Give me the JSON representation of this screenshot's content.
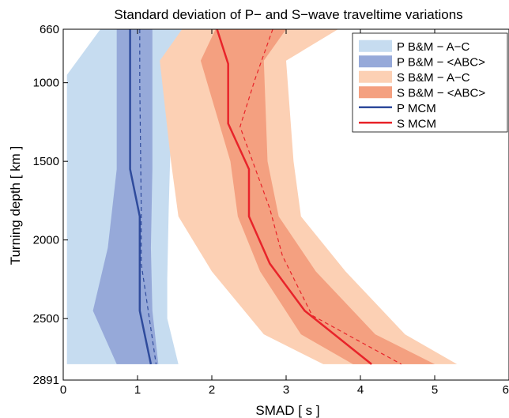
{
  "chart_data": {
    "type": "area",
    "title": "Standard deviation of P− and S−wave traveltime variations",
    "xlabel": "SMAD [ s ]",
    "ylabel": "Turning depth [ km ]",
    "xlim": [
      0,
      6
    ],
    "ylim": [
      660,
      2891
    ],
    "y_reversed": true,
    "x_ticks": [
      "0",
      "1",
      "2",
      "3",
      "4",
      "5",
      "6"
    ],
    "y_ticks": [
      {
        "value": 660,
        "label": "660"
      },
      {
        "value": 1000,
        "label": "1000"
      },
      {
        "value": 1500,
        "label": "1500"
      },
      {
        "value": 2000,
        "label": "2000"
      },
      {
        "value": 2500,
        "label": "2500"
      },
      {
        "value": 2891,
        "label": "2891"
      }
    ],
    "grid": false,
    "legend_position": "top-right",
    "bands": [
      {
        "name": "P B&M − A−C",
        "color": "#c6dcf0",
        "depth": [
          660,
          950,
          1300,
          1800,
          2250,
          2500,
          2790
        ],
        "lower": [
          0.5,
          0.05,
          0.05,
          0.05,
          0.05,
          0.05,
          0.05
        ],
        "upper": [
          1.65,
          1.5,
          1.45,
          1.42,
          1.4,
          1.4,
          1.55
        ]
      },
      {
        "name": "P B&M − <ABC>",
        "color": "#96a9d9",
        "depth": [
          660,
          1200,
          1550,
          2050,
          2450,
          2790
        ],
        "lower": [
          0.72,
          0.72,
          0.72,
          0.6,
          0.4,
          0.72
        ],
        "upper": [
          1.2,
          1.2,
          1.2,
          1.18,
          1.2,
          1.28
        ]
      },
      {
        "name": "S B&M − A−C",
        "color": "#fcd0b4",
        "depth": [
          660,
          860,
          1500,
          1850,
          2200,
          2600,
          2790
        ],
        "lower": [
          1.6,
          1.3,
          1.45,
          1.55,
          2.0,
          2.7,
          3.5
        ],
        "upper": [
          3.7,
          3.0,
          3.1,
          3.2,
          3.8,
          4.6,
          5.3
        ]
      },
      {
        "name": "S B&M − <ABC>",
        "color": "#f4a080",
        "depth": [
          660,
          860,
          1500,
          1850,
          2200,
          2600,
          2790
        ],
        "lower": [
          2.05,
          1.85,
          2.25,
          2.35,
          2.65,
          3.2,
          3.9
        ],
        "upper": [
          3.0,
          2.7,
          2.75,
          2.9,
          3.4,
          4.2,
          5.0
        ]
      }
    ],
    "series": [
      {
        "name": "P MCM",
        "color": "#2f4b9c",
        "style": "solid",
        "depth": [
          660,
          1550,
          1850,
          2450,
          2790
        ],
        "x": [
          0.9,
          0.9,
          1.03,
          1.03,
          1.18
        ]
      },
      {
        "name": "S MCM",
        "color": "#e8242a",
        "style": "solid",
        "depth": [
          660,
          880,
          1260,
          1550,
          1850,
          2150,
          2450,
          2790
        ],
        "x": [
          2.07,
          2.22,
          2.22,
          2.5,
          2.5,
          2.78,
          3.25,
          4.15
        ]
      }
    ],
    "dashed_lines": [
      {
        "color": "#2f4b9c",
        "style": "dashed",
        "depth": [
          660,
          1000,
          1800,
          2150,
          2790
        ],
        "x": [
          1.03,
          1.03,
          1.05,
          1.05,
          1.25
        ]
      },
      {
        "color": "#e8242a",
        "style": "dashed",
        "depth": [
          660,
          980,
          1280,
          1800,
          2100,
          2480,
          2790
        ],
        "x": [
          2.82,
          2.58,
          2.38,
          2.78,
          2.95,
          3.35,
          4.55
        ]
      }
    ]
  }
}
